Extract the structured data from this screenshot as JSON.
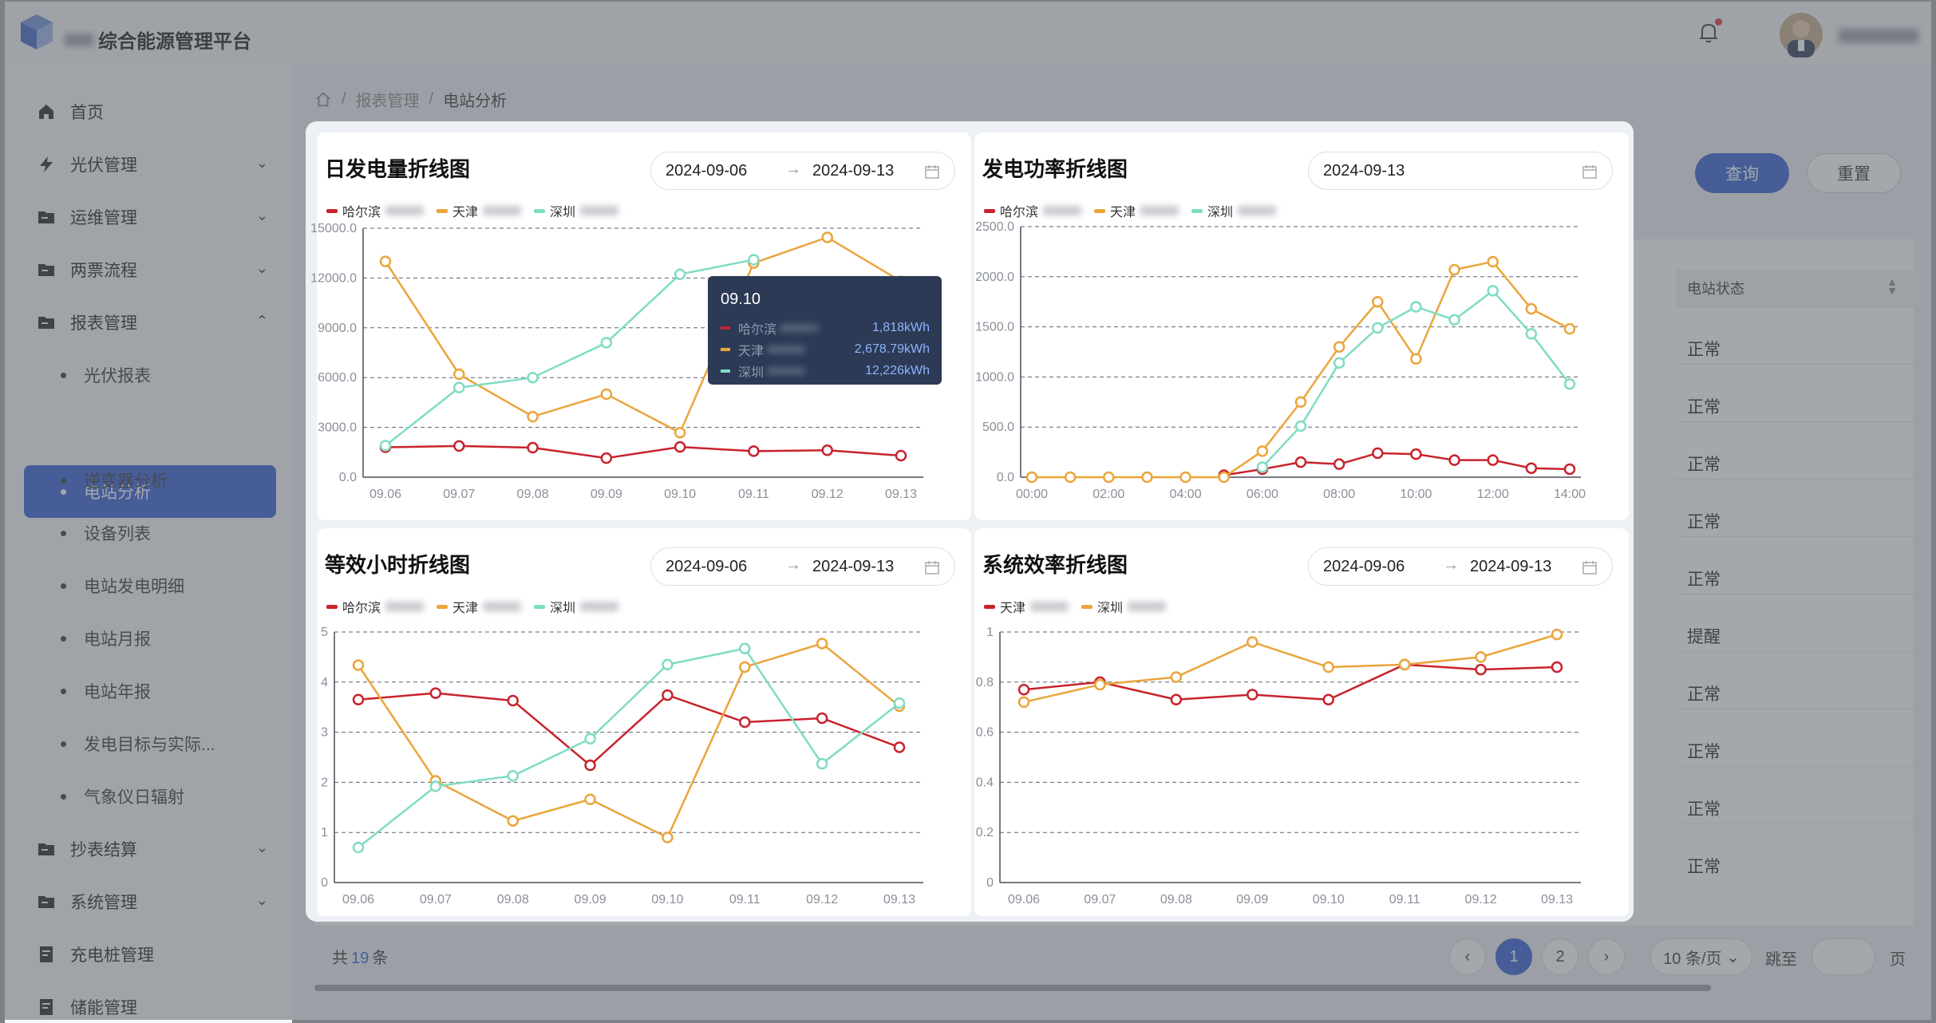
{
  "app": {
    "title": "综合能源管理平台"
  },
  "header": {
    "bell_icon": "bell-icon",
    "avatar": "user-avatar"
  },
  "sidebar": {
    "items": [
      {
        "label": "首页",
        "icon": "home-icon"
      },
      {
        "label": "光伏管理",
        "icon": "bolt-icon"
      },
      {
        "label": "运维管理",
        "icon": "folder-icon"
      },
      {
        "label": "两票流程",
        "icon": "folder-icon"
      },
      {
        "label": "报表管理",
        "icon": "folder-icon"
      },
      {
        "label": "抄表结算",
        "icon": "folder-icon"
      },
      {
        "label": "系统管理",
        "icon": "folder-icon"
      },
      {
        "label": "充电桩管理",
        "icon": "doc-icon"
      },
      {
        "label": "储能管理",
        "icon": "doc-icon"
      }
    ],
    "sub_items": [
      "光伏报表",
      "电站分析",
      "逆变器分析",
      "设备列表",
      "电站发电明细",
      "电站月报",
      "电站年报",
      "发电目标与实际...",
      "气象仪日辐射"
    ],
    "active_sub": "电站分析"
  },
  "breadcrumb": {
    "home_icon": "home-icon",
    "items": [
      "报表管理",
      "电站分析"
    ]
  },
  "filters": {
    "query_label": "查询",
    "reset_label": "重置"
  },
  "table": {
    "status_header": "电站状态",
    "statuses": [
      "正常",
      "正常",
      "正常",
      "正常",
      "正常",
      "提醒",
      "正常",
      "正常",
      "正常",
      "正常"
    ]
  },
  "pagination": {
    "total_prefix": "共",
    "total": "19",
    "total_suffix": "条",
    "pages": [
      "1",
      "2"
    ],
    "current": "1",
    "page_size": "10 条/页",
    "jump_label": "跳至",
    "page_suffix": "页"
  },
  "modal": {
    "panels": [
      {
        "title": "日发电量折线图",
        "date_start": "2024-09-06",
        "date_end": "2024-09-13"
      },
      {
        "title": "发电功率折线图",
        "date_start": "2024-09-13",
        "date_end": ""
      },
      {
        "title": "等效小时折线图",
        "date_start": "2024-09-06",
        "date_end": "2024-09-13"
      },
      {
        "title": "系统效率折线图",
        "date_start": "2024-09-06",
        "date_end": "2024-09-13"
      }
    ]
  },
  "chart_data": [
    {
      "type": "line",
      "title": "日发电量折线图",
      "x": [
        "09.06",
        "09.07",
        "09.08",
        "09.09",
        "09.10",
        "09.11",
        "09.12",
        "09.13"
      ],
      "ylim": [
        0,
        15000
      ],
      "yticks": [
        "0.0",
        "3000.0",
        "6000.0",
        "9000.0",
        "12000.0",
        "15000.0"
      ],
      "grid": true,
      "legend": "top-left",
      "series": [
        {
          "name": "哈尔滨",
          "color": "#c8232c",
          "values": [
            1800,
            1880,
            1780,
            1150,
            1818,
            1570,
            1620,
            1300
          ]
        },
        {
          "name": "天津",
          "color": "#eaa53b",
          "values": [
            13000,
            6200,
            3650,
            5000,
            2678.79,
            12900,
            14450,
            11800
          ]
        },
        {
          "name": "深圳",
          "color": "#7fdcc4",
          "values": [
            1900,
            5400,
            6000,
            8100,
            12226,
            13100,
            null,
            null
          ]
        }
      ],
      "tooltip": {
        "title": "09.10",
        "rows": [
          {
            "name": "哈尔滨",
            "value": "1,818kWh",
            "color": "#c8232c"
          },
          {
            "name": "天津",
            "value": "2,678.79kWh",
            "color": "#eaa53b"
          },
          {
            "name": "深圳",
            "value": "12,226kWh",
            "color": "#7fdcc4"
          }
        ]
      }
    },
    {
      "type": "line",
      "title": "发电功率折线图",
      "x": [
        "00:00",
        "01:00",
        "02:00",
        "03:00",
        "04:00",
        "05:00",
        "06:00",
        "07:00",
        "08:00",
        "09:00",
        "10:00",
        "11:00",
        "12:00",
        "13:00",
        "14:00"
      ],
      "xticks": [
        "00:00",
        "02:00",
        "04:00",
        "06:00",
        "08:00",
        "10:00",
        "12:00",
        "14:00"
      ],
      "ylim": [
        0,
        2500
      ],
      "yticks": [
        "0.0",
        "500.0",
        "1000.0",
        "1500.0",
        "2000.0",
        "2500.0"
      ],
      "grid": true,
      "legend": "top-left",
      "series": [
        {
          "name": "哈尔滨",
          "color": "#c8232c",
          "values": [
            null,
            null,
            null,
            null,
            null,
            20,
            80,
            150,
            130,
            240,
            230,
            170,
            170,
            90,
            80
          ]
        },
        {
          "name": "天津",
          "color": "#eaa53b",
          "values": [
            0,
            0,
            0,
            0,
            0,
            0,
            260,
            750,
            1300,
            1750,
            1180,
            2070,
            2150,
            1680,
            1480
          ]
        },
        {
          "name": "深圳",
          "color": "#7fdcc4",
          "values": [
            null,
            null,
            null,
            null,
            null,
            null,
            100,
            510,
            1140,
            1490,
            1700,
            1570,
            1860,
            1430,
            930
          ]
        }
      ]
    },
    {
      "type": "line",
      "title": "等效小时折线图",
      "x": [
        "09.06",
        "09.07",
        "09.08",
        "09.09",
        "09.10",
        "09.11",
        "09.12",
        "09.13"
      ],
      "ylim": [
        0,
        5
      ],
      "yticks": [
        "0",
        "1",
        "2",
        "3",
        "4",
        "5"
      ],
      "grid": true,
      "legend": "top-left",
      "series": [
        {
          "name": "哈尔滨",
          "color": "#c8232c",
          "values": [
            3.65,
            3.78,
            3.63,
            2.34,
            3.74,
            3.2,
            3.28,
            2.7
          ]
        },
        {
          "name": "天津",
          "color": "#eaa53b",
          "values": [
            4.34,
            2.03,
            1.23,
            1.66,
            0.9,
            4.3,
            4.77,
            3.52
          ]
        },
        {
          "name": "深圳",
          "color": "#7fdcc4",
          "values": [
            0.7,
            1.92,
            2.13,
            2.87,
            4.35,
            4.67,
            2.37,
            3.58
          ]
        }
      ]
    },
    {
      "type": "line",
      "title": "系统效率折线图",
      "x": [
        "09.06",
        "09.07",
        "09.08",
        "09.09",
        "09.10",
        "09.11",
        "09.12",
        "09.13"
      ],
      "ylim": [
        0,
        1
      ],
      "yticks": [
        "0",
        "0.2",
        "0.4",
        "0.6",
        "0.8",
        "1"
      ],
      "grid": true,
      "legend": "top-left",
      "series": [
        {
          "name": "天津",
          "color": "#c8232c",
          "values": [
            0.77,
            0.8,
            0.73,
            0.75,
            0.73,
            0.87,
            0.85,
            0.86
          ]
        },
        {
          "name": "深圳",
          "color": "#eaa53b",
          "values": [
            0.72,
            0.79,
            0.82,
            0.96,
            0.86,
            0.87,
            0.9,
            0.99
          ]
        }
      ]
    }
  ]
}
